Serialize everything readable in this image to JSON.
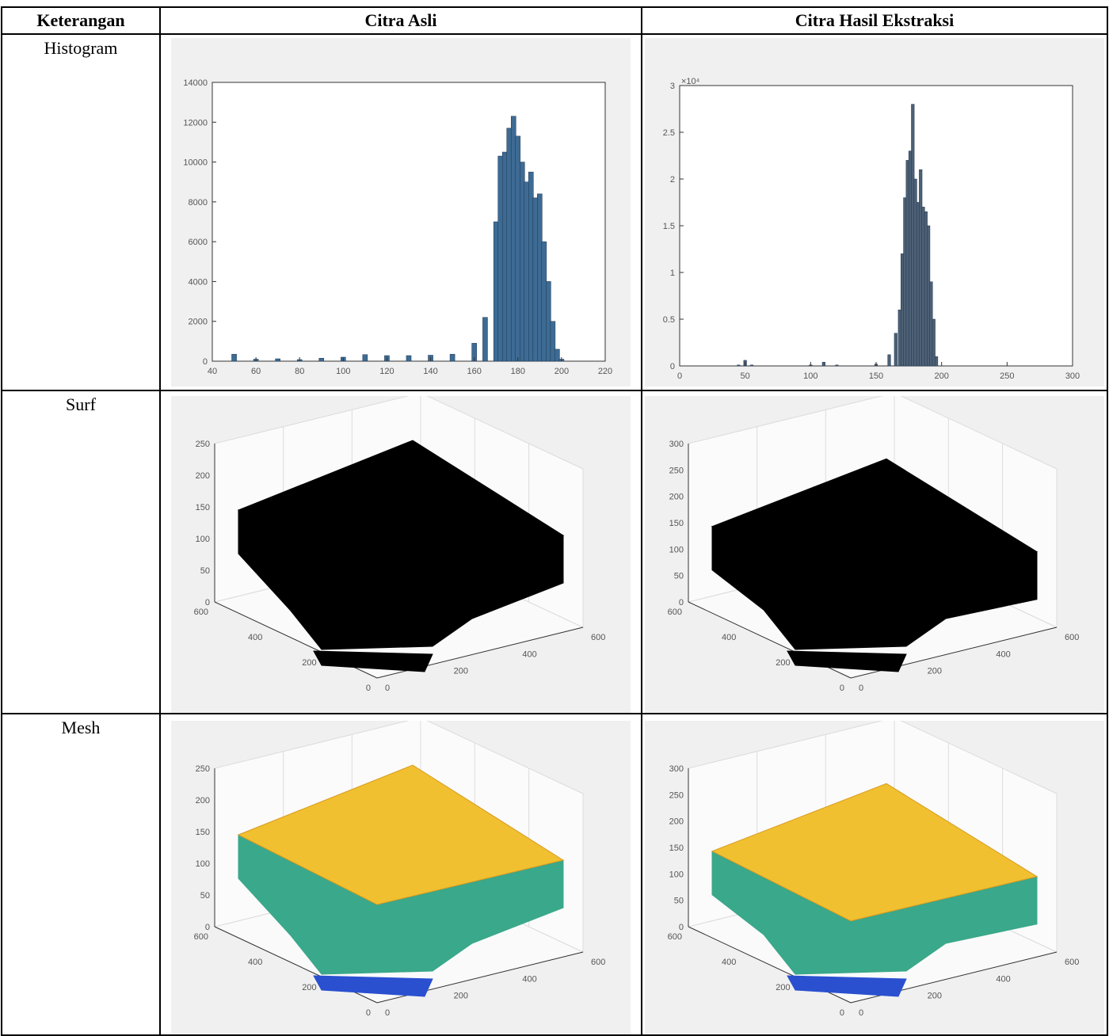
{
  "table": {
    "headers": [
      "Keterangan",
      "Citra Asli",
      "Citra Hasil Ekstraksi"
    ],
    "rows": [
      {
        "label": "Histogram"
      },
      {
        "label": "Surf"
      },
      {
        "label": "Mesh"
      }
    ]
  },
  "colors": {
    "bar": "#3d6b94",
    "bar2": "#4d6075",
    "surf": "#000000",
    "mesh_top": "#f0c030",
    "mesh_side": "#3aa88a",
    "mesh_low": "#2a50d0"
  },
  "chart_data": [
    {
      "type": "bar",
      "panel": "Citra Asli Histogram",
      "x": [
        40,
        50,
        60,
        70,
        80,
        90,
        100,
        110,
        120,
        130,
        140,
        150,
        160,
        165,
        170,
        172,
        174,
        176,
        178,
        180,
        182,
        184,
        186,
        188,
        190,
        192,
        194,
        196,
        198,
        200,
        205
      ],
      "values": [
        0,
        350,
        100,
        120,
        80,
        150,
        200,
        330,
        280,
        280,
        300,
        350,
        900,
        2200,
        7000,
        10300,
        10500,
        11700,
        12300,
        11300,
        10000,
        9000,
        9500,
        8200,
        8400,
        6000,
        4000,
        2000,
        600,
        100,
        0
      ],
      "xticks": [
        "40",
        "60",
        "80",
        "100",
        "120",
        "140",
        "160",
        "180",
        "200",
        "220"
      ],
      "yticks": [
        "0",
        "2000",
        "4000",
        "6000",
        "8000",
        "10000",
        "12000",
        "14000"
      ],
      "xlim": [
        40,
        220
      ],
      "ylim": [
        0,
        14000
      ]
    },
    {
      "type": "bar",
      "panel": "Citra Hasil Ekstraksi Histogram",
      "x": [
        0,
        45,
        50,
        55,
        100,
        110,
        120,
        150,
        160,
        165,
        168,
        170,
        172,
        174,
        176,
        178,
        180,
        182,
        184,
        186,
        188,
        190,
        192,
        194,
        196,
        200
      ],
      "values": [
        0,
        0.01,
        0.06,
        0.01,
        0.01,
        0.04,
        0.01,
        0.02,
        0.12,
        0.35,
        0.6,
        1.2,
        1.8,
        2.2,
        2.3,
        2.8,
        2.0,
        1.75,
        2.1,
        1.7,
        1.65,
        1.5,
        0.9,
        0.5,
        0.1,
        0
      ],
      "xticks": [
        "0",
        "50",
        "100",
        "150",
        "200",
        "250",
        "300"
      ],
      "yticks": [
        "0",
        "0.5",
        "1",
        "1.5",
        "2",
        "2.5",
        "3"
      ],
      "multiplier_label": "×10⁴",
      "xlim": [
        0,
        300
      ],
      "ylim": [
        0,
        3
      ]
    }
  ],
  "surf_axes": {
    "asli": {
      "z": [
        "0",
        "50",
        "100",
        "150",
        "200",
        "250"
      ],
      "y": [
        "600",
        "400",
        "200",
        "0"
      ],
      "x": [
        "0",
        "200",
        "400",
        "600"
      ]
    },
    "ekstraksi": {
      "z": [
        "0",
        "50",
        "100",
        "150",
        "200",
        "250",
        "300"
      ],
      "y": [
        "600",
        "400",
        "200",
        "0"
      ],
      "x": [
        "0",
        "200",
        "400",
        "600"
      ]
    }
  }
}
